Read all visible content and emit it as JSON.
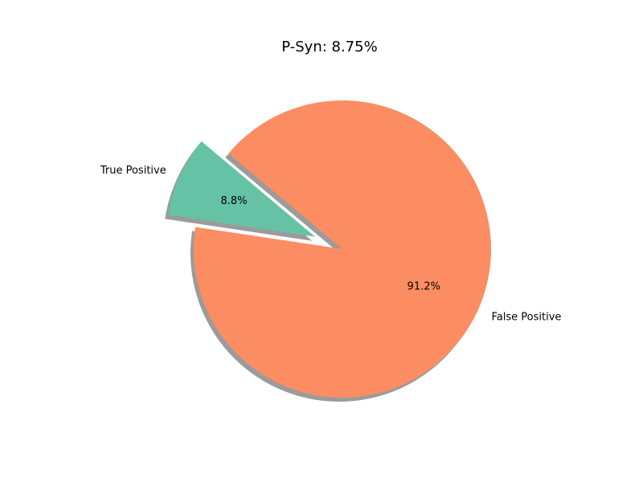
{
  "chart_data": {
    "type": "pie",
    "title": "P-Syn: 8.75%",
    "slices": [
      {
        "label": "True Positive",
        "value": 8.75,
        "pct_label": "8.8%",
        "color": "#66c2a5",
        "exploded": true
      },
      {
        "label": "False Positive",
        "value": 91.25,
        "pct_label": "91.2%",
        "color": "#fc8d62",
        "exploded": false
      }
    ],
    "shadow": true,
    "legend": "none"
  }
}
